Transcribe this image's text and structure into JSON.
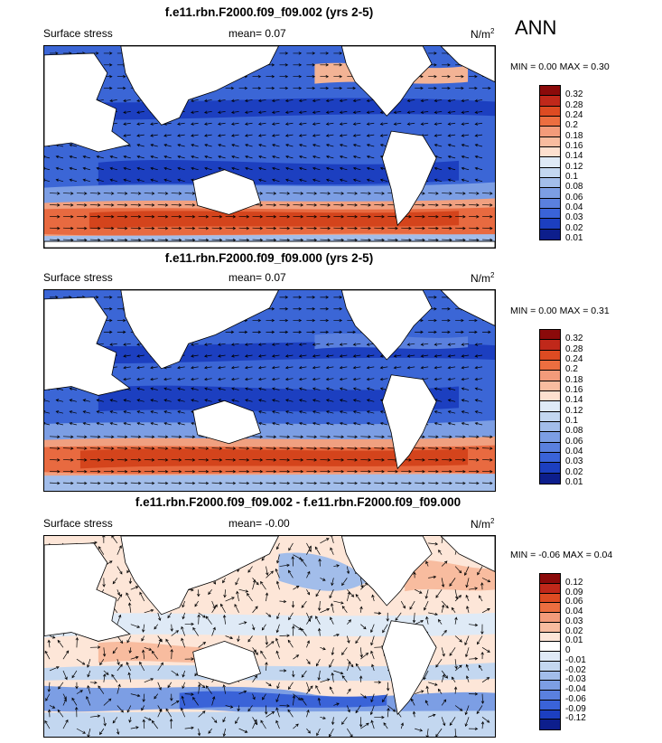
{
  "season": "ANN",
  "panels": [
    {
      "title": "f.e11.rbn.F2000.f09_f09.002 (yrs 2-5)",
      "variable": "Surface stress",
      "mean": "mean=   0.07",
      "units_base": "N/m",
      "units_exp": "2",
      "minmax": "MIN =   0.00 MAX =   0.30",
      "colorbar": {
        "colors": [
          "#8b0a0a",
          "#c0281a",
          "#dd4b22",
          "#ec6e40",
          "#f39b7a",
          "#f8bc9f",
          "#fde0cf",
          "#dfeaf6",
          "#c3d7f0",
          "#a2bdea",
          "#7c9ee4",
          "#5a80de",
          "#3a63d8",
          "#1c3fc0",
          "#0d1e8c"
        ],
        "labels": [
          "0.32",
          "0.28",
          "0.24",
          "0.2",
          "0.18",
          "0.16",
          "0.14",
          "0.12",
          "0.1",
          "0.08",
          "0.06",
          "0.04",
          "0.03",
          "0.02",
          "0.01"
        ]
      }
    },
    {
      "title": "f.e11.rbn.F2000.f09_f09.000 (yrs 2-5)",
      "variable": "Surface stress",
      "mean": "mean=   0.07",
      "units_base": "N/m",
      "units_exp": "2",
      "minmax": "MIN =   0.00 MAX =   0.31",
      "colorbar": {
        "colors": [
          "#8b0a0a",
          "#c0281a",
          "#dd4b22",
          "#ec6e40",
          "#f39b7a",
          "#f8bc9f",
          "#fde0cf",
          "#dfeaf6",
          "#c3d7f0",
          "#a2bdea",
          "#7c9ee4",
          "#5a80de",
          "#3a63d8",
          "#1c3fc0",
          "#0d1e8c"
        ],
        "labels": [
          "0.32",
          "0.28",
          "0.24",
          "0.2",
          "0.18",
          "0.16",
          "0.14",
          "0.12",
          "0.1",
          "0.08",
          "0.06",
          "0.04",
          "0.03",
          "0.02",
          "0.01"
        ]
      }
    },
    {
      "title": "f.e11.rbn.F2000.f09_f09.002 - f.e11.rbn.F2000.f09_f09.000",
      "variable": "Surface stress",
      "mean": "mean=  -0.00",
      "units_base": "N/m",
      "units_exp": "2",
      "minmax": "MIN =  -0.06 MAX =   0.04",
      "colorbar": {
        "colors": [
          "#8b0a0a",
          "#c0281a",
          "#dd4b22",
          "#ec6e40",
          "#f39b7a",
          "#f8bc9f",
          "#fde6d8",
          "#ffffff",
          "#dfeaf6",
          "#c3d7f0",
          "#a2bdea",
          "#7c9ee4",
          "#5a80de",
          "#3a63d8",
          "#1c3fc0",
          "#0d1e8c"
        ],
        "labels": [
          "0.12",
          "0.09",
          "0.06",
          "0.04",
          "0.03",
          "0.02",
          "0.01",
          "0",
          "-0.01",
          "-0.02",
          "-0.03",
          "-0.04",
          "-0.06",
          "-0.09",
          "-0.12"
        ]
      }
    }
  ]
}
